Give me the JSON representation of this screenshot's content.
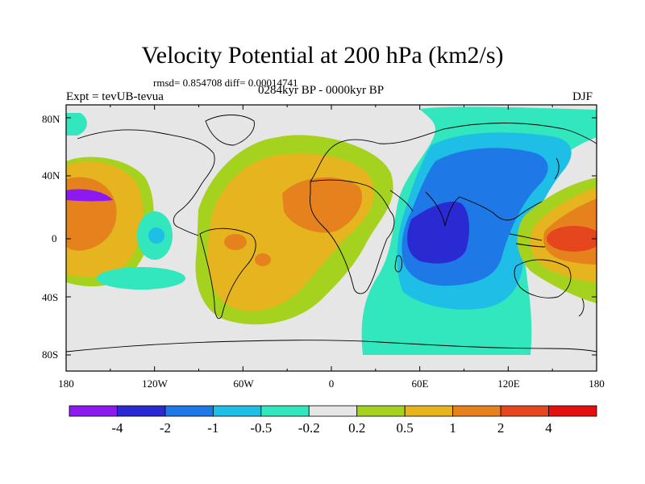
{
  "title": "Velocity Potential at 200 hPa (km2/s)",
  "stats": "rmsd= 0.854708 diff= 0.00014741",
  "left_label": "Expt = tevUB-tevua",
  "center_label": "0284kyr BP - 0000kyr BP",
  "right_label": "DJF",
  "lat_ticks": [
    "80N",
    "40N",
    "0",
    "40S",
    "80S"
  ],
  "lon_ticks": [
    "180",
    "120W",
    "60W",
    "0",
    "60E",
    "120E",
    "180"
  ],
  "legend": {
    "colors": [
      "#8c19f0",
      "#2a2ad2",
      "#1e78e6",
      "#1ebee6",
      "#32e6be",
      "#e6e6e6",
      "#a5d21e",
      "#e6b41e",
      "#e6821e",
      "#e6461e",
      "#e60f0f"
    ],
    "labels": [
      "-4",
      "-2",
      "-1",
      "-0.5",
      "-0.2",
      "0.2",
      "0.5",
      "1",
      "2",
      "4"
    ]
  }
}
